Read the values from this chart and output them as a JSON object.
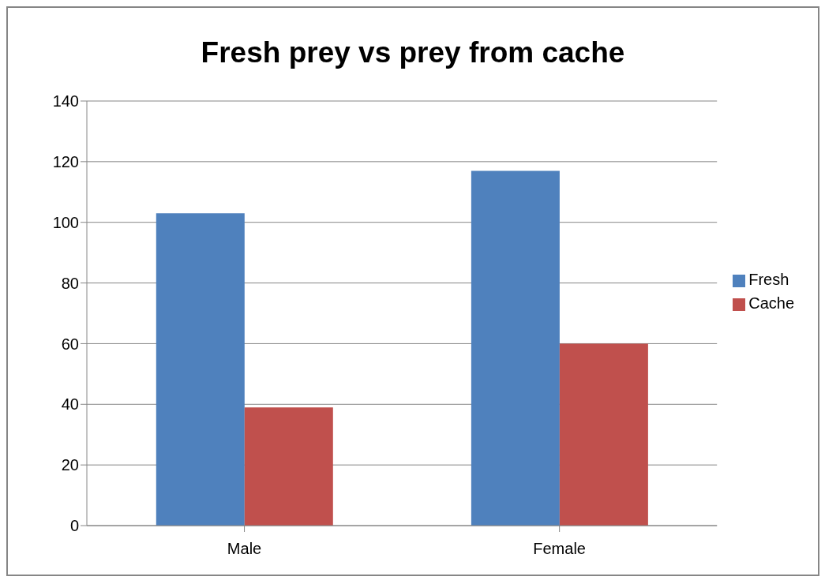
{
  "chart_data": {
    "type": "bar",
    "title": "Fresh prey vs prey from cache",
    "categories": [
      "Male",
      "Female"
    ],
    "series": [
      {
        "name": "Fresh",
        "color": "#4f81bd",
        "values": [
          103,
          117
        ]
      },
      {
        "name": "Cache",
        "color": "#c0504d",
        "values": [
          39,
          60
        ]
      }
    ],
    "ylim": [
      0,
      140
    ],
    "yticks": [
      0,
      20,
      40,
      60,
      80,
      100,
      120,
      140
    ],
    "grid": "y",
    "legend": "right"
  }
}
